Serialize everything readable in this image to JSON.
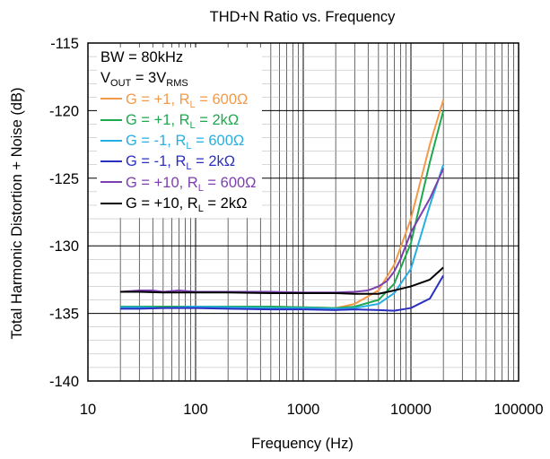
{
  "chart_data": {
    "type": "line",
    "title": "THD+N Ratio vs. Frequency",
    "xlabel": "Frequency (Hz)",
    "ylabel": "Total Harmonic Distortion + Noise (dB)",
    "x_scale": "log",
    "xlim": [
      10,
      100000
    ],
    "ylim": [
      -140,
      -115
    ],
    "x_ticks": [
      "10",
      "100",
      "1000",
      "10000",
      "100000"
    ],
    "y_ticks": [
      "-140",
      "-135",
      "-130",
      "-125",
      "-120",
      "-115"
    ],
    "grid": true,
    "legend_position": "top-left",
    "annotations": {
      "bw": "BW = 80kHz",
      "vout_v": "V",
      "vout_sub": "OUT",
      "vout_eq": " = 3V",
      "vout_rms": "RMS"
    },
    "series": [
      {
        "name_pre": "G = +1, R",
        "name_sub": "L",
        "name_post": " = 600Ω",
        "color": "#f39a4a",
        "x": [
          20,
          30,
          50,
          100,
          200,
          500,
          1000,
          2000,
          3000,
          5000,
          7000,
          10000,
          15000,
          20000
        ],
        "y": [
          -134.5,
          -134.5,
          -134.5,
          -134.5,
          -134.5,
          -134.5,
          -134.55,
          -134.6,
          -134.3,
          -133.3,
          -131.4,
          -128.0,
          -122.5,
          -119.2
        ]
      },
      {
        "name_pre": "G = +1, R",
        "name_sub": "L",
        "name_post": " = 2kΩ",
        "color": "#1fa84f",
        "x": [
          20,
          30,
          50,
          100,
          200,
          500,
          1000,
          2000,
          3000,
          5000,
          7000,
          10000,
          15000,
          20000
        ],
        "y": [
          -134.5,
          -134.5,
          -134.5,
          -134.5,
          -134.5,
          -134.5,
          -134.55,
          -134.6,
          -134.5,
          -134.0,
          -132.8,
          -129.8,
          -123.8,
          -120.0
        ]
      },
      {
        "name_pre": "G = -1, R",
        "name_sub": "L",
        "name_post": " = 600Ω",
        "color": "#27aee3",
        "x": [
          20,
          30,
          50,
          100,
          200,
          500,
          1000,
          2000,
          3000,
          5000,
          7000,
          10000,
          15000,
          20000
        ],
        "y": [
          -134.55,
          -134.55,
          -134.6,
          -134.5,
          -134.55,
          -134.6,
          -134.6,
          -134.65,
          -134.6,
          -134.3,
          -133.5,
          -131.7,
          -127.0,
          -124.0
        ]
      },
      {
        "name_pre": "G = -1, R",
        "name_sub": "L",
        "name_post": " = 2kΩ",
        "color": "#2b2fbf",
        "x": [
          20,
          30,
          50,
          100,
          200,
          500,
          1000,
          2000,
          3000,
          5000,
          7000,
          10000,
          15000,
          20000
        ],
        "y": [
          -134.65,
          -134.65,
          -134.6,
          -134.6,
          -134.65,
          -134.7,
          -134.7,
          -134.75,
          -134.7,
          -134.75,
          -134.8,
          -134.6,
          -133.9,
          -132.2
        ]
      },
      {
        "name_pre": "G = +10, R",
        "name_sub": "L",
        "name_post": " = 600Ω",
        "color": "#7b3fb0",
        "x": [
          20,
          30,
          40,
          50,
          70,
          100,
          200,
          500,
          1000,
          2000,
          3000,
          4000,
          5000,
          6000,
          7000,
          8000,
          10000,
          15000,
          20000
        ],
        "y": [
          -133.4,
          -133.3,
          -133.3,
          -133.4,
          -133.3,
          -133.4,
          -133.4,
          -133.4,
          -133.45,
          -133.45,
          -133.4,
          -133.3,
          -133.0,
          -132.6,
          -131.9,
          -131.0,
          -129.0,
          -126.5,
          -124.3
        ]
      },
      {
        "name_pre": "G = +10, R",
        "name_sub": "L",
        "name_post": " = 2kΩ",
        "color": "#000000",
        "x": [
          20,
          30,
          50,
          100,
          200,
          500,
          1000,
          2000,
          3000,
          5000,
          7000,
          10000,
          15000,
          20000
        ],
        "y": [
          -133.4,
          -133.4,
          -133.45,
          -133.45,
          -133.45,
          -133.5,
          -133.5,
          -133.5,
          -133.55,
          -133.55,
          -133.3,
          -133.0,
          -132.5,
          -131.6
        ]
      }
    ]
  }
}
